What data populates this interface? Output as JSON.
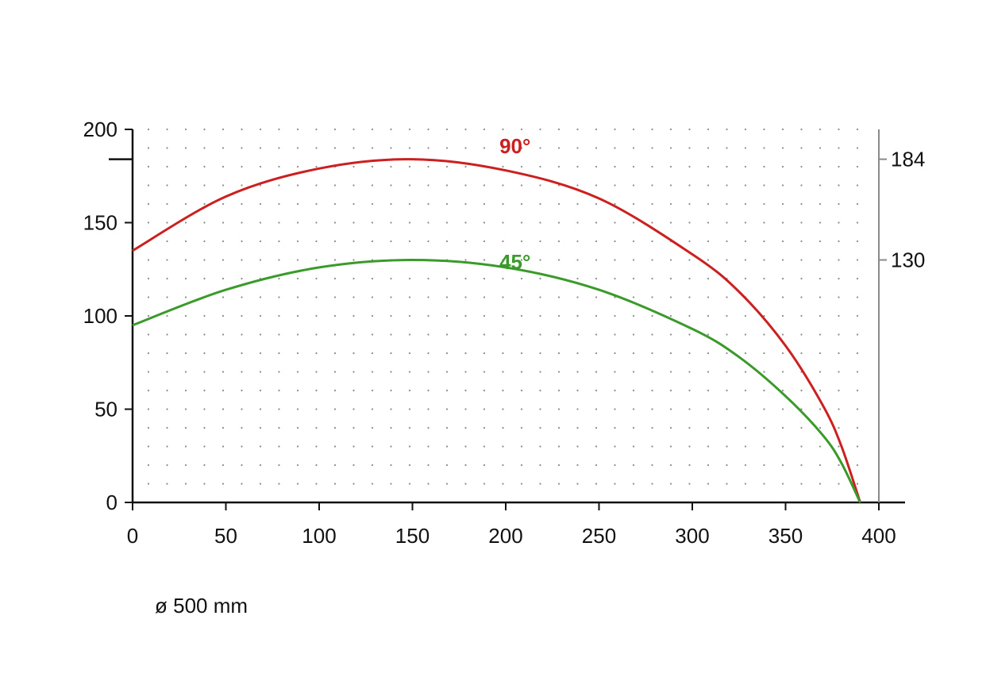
{
  "chart_data": {
    "type": "line",
    "xlim": [
      0,
      400
    ],
    "ylim": [
      0,
      200
    ],
    "x_ticks": [
      0,
      50,
      100,
      150,
      200,
      250,
      300,
      350,
      400
    ],
    "y_ticks": [
      0,
      50,
      100,
      150,
      200
    ],
    "right_axis_ticks": [
      184,
      130
    ],
    "grid": "dotted",
    "series": [
      {
        "name": "90°",
        "color": "#cc1f1f",
        "points": [
          [
            0,
            135
          ],
          [
            50,
            164
          ],
          [
            100,
            179
          ],
          [
            150,
            184
          ],
          [
            200,
            178
          ],
          [
            250,
            163
          ],
          [
            300,
            133
          ],
          [
            325,
            113
          ],
          [
            350,
            84
          ],
          [
            370,
            52
          ],
          [
            380,
            30
          ],
          [
            390,
            0
          ]
        ]
      },
      {
        "name": "45°",
        "color": "#3a9a2a",
        "points": [
          [
            0,
            95
          ],
          [
            50,
            114
          ],
          [
            100,
            126
          ],
          [
            150,
            130
          ],
          [
            200,
            126
          ],
          [
            250,
            114
          ],
          [
            300,
            93
          ],
          [
            325,
            78
          ],
          [
            350,
            57
          ],
          [
            370,
            36
          ],
          [
            380,
            21
          ],
          [
            390,
            0
          ]
        ]
      }
    ],
    "annotation": "ø  500 mm"
  }
}
